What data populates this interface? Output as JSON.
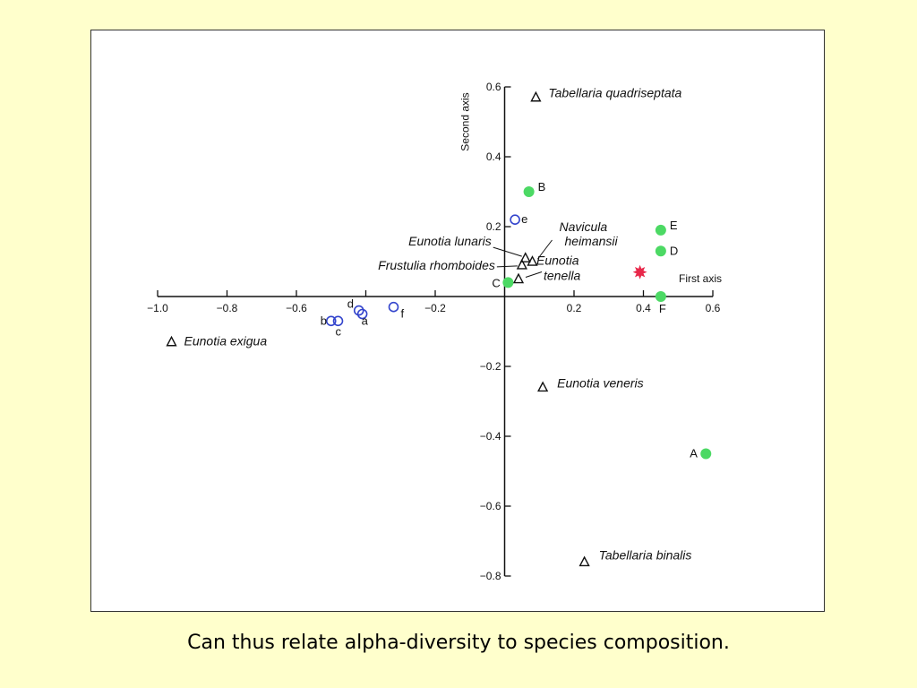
{
  "slide": {
    "caption": "Can thus relate alpha-diversity to species composition."
  },
  "colors": {
    "background": "#ffffcc",
    "site_filled": "#4cd964",
    "site_open": "#3344cc",
    "target_marker": "#e8284a",
    "species_marker": "#111111"
  },
  "chart_data": {
    "type": "scatter",
    "xlabel": "First axis",
    "ylabel": "Second axis",
    "xlim": [
      -1.0,
      0.6
    ],
    "ylim": [
      -0.8,
      0.6
    ],
    "x_ticks": [
      {
        "value": -1.0,
        "label": "−1.0"
      },
      {
        "value": -0.8,
        "label": "−0.8"
      },
      {
        "value": -0.6,
        "label": "−0.6"
      },
      {
        "value": -0.4,
        "label": ""
      },
      {
        "value": -0.2,
        "label": "−0.2"
      },
      {
        "value": 0.2,
        "label": "0.2"
      },
      {
        "value": 0.4,
        "label": "0.4"
      },
      {
        "value": 0.6,
        "label": "0.6"
      }
    ],
    "y_ticks": [
      {
        "value": 0.6,
        "label": "0.6"
      },
      {
        "value": 0.4,
        "label": "0.4"
      },
      {
        "value": 0.2,
        "label": "0.2"
      },
      {
        "value": -0.2,
        "label": "−0.2"
      },
      {
        "value": -0.4,
        "label": "−0.4"
      },
      {
        "value": -0.6,
        "label": "−0.6"
      },
      {
        "value": -0.8,
        "label": "−0.8"
      }
    ],
    "grid": false,
    "series": [
      {
        "marker": "filled-circle",
        "points": [
          {
            "label": "A",
            "x": 0.58,
            "y": -0.45
          },
          {
            "label": "B",
            "x": 0.07,
            "y": 0.3
          },
          {
            "label": "C",
            "x": 0.01,
            "y": 0.04
          },
          {
            "label": "D",
            "x": 0.45,
            "y": 0.13
          },
          {
            "label": "E",
            "x": 0.45,
            "y": 0.19
          },
          {
            "label": "F",
            "x": 0.45,
            "y": 0.0
          }
        ]
      },
      {
        "marker": "open-circle",
        "points": [
          {
            "label": "a",
            "x": -0.41,
            "y": -0.05
          },
          {
            "label": "b",
            "x": -0.5,
            "y": -0.07
          },
          {
            "label": "c",
            "x": -0.48,
            "y": -0.07
          },
          {
            "label": "d",
            "x": -0.42,
            "y": -0.04
          },
          {
            "label": "e",
            "x": 0.03,
            "y": 0.22
          },
          {
            "label": "f",
            "x": -0.32,
            "y": -0.03
          }
        ]
      },
      {
        "marker": "star",
        "points": [
          {
            "label": "",
            "x": 0.39,
            "y": 0.07
          }
        ]
      },
      {
        "marker": "open-triangle",
        "points": [
          {
            "label": "Tabellaria quadriseptata",
            "x": 0.09,
            "y": 0.57
          },
          {
            "label": "Eunotia lunaris",
            "x": 0.06,
            "y": 0.11
          },
          {
            "label": "Frustulia rhomboides",
            "x": 0.05,
            "y": 0.09
          },
          {
            "label": "Navicula heimansii",
            "x": 0.08,
            "y": 0.1
          },
          {
            "label": "Eunotia tenella",
            "x": 0.04,
            "y": 0.05
          },
          {
            "label": "Eunotia exigua",
            "x": -0.96,
            "y": -0.13
          },
          {
            "label": "Eunotia veneris",
            "x": 0.11,
            "y": -0.26
          },
          {
            "label": "Tabellaria binalis",
            "x": 0.23,
            "y": -0.76
          }
        ]
      }
    ]
  }
}
